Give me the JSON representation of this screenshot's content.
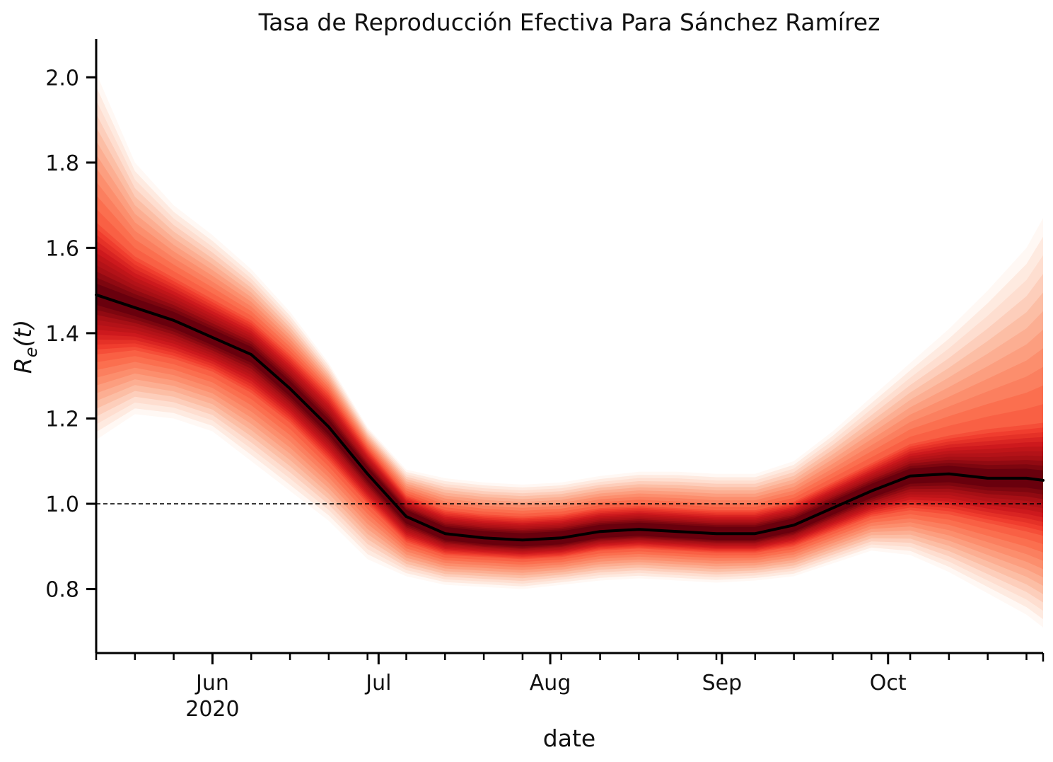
{
  "chart_data": {
    "type": "area",
    "title": "Tasa de Reproducción Efectiva Para Sánchez Ramírez",
    "xlabel": "date",
    "ylabel": "R_e(t)",
    "ylim": [
      0.65,
      2.09
    ],
    "xlim": [
      "2020-05-11",
      "2020-10-29"
    ],
    "x_tick_labels": [
      {
        "date": "2020-06-01",
        "label": "Jun",
        "sublabel": "2020"
      },
      {
        "date": "2020-07-01",
        "label": "Jul",
        "sublabel": ""
      },
      {
        "date": "2020-08-01",
        "label": "Aug",
        "sublabel": ""
      },
      {
        "date": "2020-09-01",
        "label": "Sep",
        "sublabel": ""
      },
      {
        "date": "2020-10-01",
        "label": "Oct",
        "sublabel": ""
      }
    ],
    "y_ticks": [
      0.8,
      1.0,
      1.2,
      1.4,
      1.6,
      1.8,
      2.0
    ],
    "y_tick_labels": [
      "0.8",
      "1.0",
      "1.2",
      "1.4",
      "1.6",
      "1.8",
      "2.0"
    ],
    "reference_line": {
      "y": 1.0,
      "style": "dashed",
      "color": "#000000"
    },
    "grid": false,
    "colors": {
      "median": "#000000",
      "band_dark": "#67000d",
      "band_light": "#fff5f0"
    },
    "series": [
      {
        "role": "median",
        "x": [
          "2020-05-11",
          "2020-05-18",
          "2020-05-25",
          "2020-06-01",
          "2020-06-08",
          "2020-06-15",
          "2020-06-22",
          "2020-06-29",
          "2020-07-06",
          "2020-07-13",
          "2020-07-20",
          "2020-07-27",
          "2020-08-03",
          "2020-08-10",
          "2020-08-17",
          "2020-08-24",
          "2020-08-31",
          "2020-09-07",
          "2020-09-14",
          "2020-09-21",
          "2020-09-28",
          "2020-10-05",
          "2020-10-12",
          "2020-10-19",
          "2020-10-26",
          "2020-10-29"
        ],
        "values": [
          1.49,
          1.46,
          1.43,
          1.39,
          1.35,
          1.27,
          1.18,
          1.07,
          0.97,
          0.93,
          0.92,
          0.915,
          0.92,
          0.935,
          0.94,
          0.935,
          0.93,
          0.93,
          0.95,
          0.99,
          1.03,
          1.065,
          1.07,
          1.06,
          1.06,
          1.055
        ]
      },
      {
        "role": "band_outer",
        "lower": [
          1.15,
          1.21,
          1.2,
          1.17,
          1.1,
          1.03,
          0.96,
          0.87,
          0.83,
          0.81,
          0.805,
          0.8,
          0.81,
          0.82,
          0.825,
          0.82,
          0.815,
          0.82,
          0.83,
          0.86,
          0.89,
          0.88,
          0.84,
          0.79,
          0.74,
          0.71
        ],
        "upper": [
          2.01,
          1.8,
          1.7,
          1.63,
          1.55,
          1.45,
          1.33,
          1.18,
          1.08,
          1.06,
          1.05,
          1.045,
          1.05,
          1.065,
          1.075,
          1.075,
          1.07,
          1.07,
          1.1,
          1.17,
          1.25,
          1.33,
          1.41,
          1.5,
          1.6,
          1.67
        ]
      },
      {
        "role": "band_inner",
        "lower": [
          1.35,
          1.36,
          1.34,
          1.31,
          1.26,
          1.19,
          1.1,
          1.0,
          0.91,
          0.88,
          0.875,
          0.87,
          0.875,
          0.89,
          0.895,
          0.89,
          0.885,
          0.885,
          0.9,
          0.935,
          0.97,
          0.985,
          0.975,
          0.955,
          0.935,
          0.925
        ],
        "upper": [
          1.66,
          1.58,
          1.53,
          1.48,
          1.43,
          1.35,
          1.26,
          1.13,
          1.02,
          0.985,
          0.975,
          0.97,
          0.975,
          0.99,
          0.995,
          0.99,
          0.985,
          0.985,
          1.005,
          1.05,
          1.095,
          1.14,
          1.16,
          1.175,
          1.185,
          1.19
        ]
      }
    ]
  }
}
